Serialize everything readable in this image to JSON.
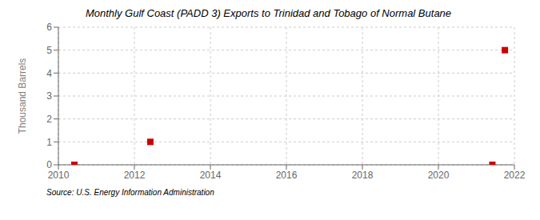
{
  "chart_data": {
    "type": "scatter",
    "title": "Monthly Gulf Coast (PADD 3) Exports to Trinidad and Tobago of Normal Butane",
    "y_label": "Thousand Barrels",
    "annotations": [
      "Source: U.S. Energy Information Administration"
    ],
    "x": [
      2010.42,
      2012.42,
      2021.42,
      2021.75
    ],
    "values": [
      0,
      1,
      0,
      5
    ],
    "color": "#cc0000",
    "marker": "square",
    "xlim": [
      2010,
      2022
    ],
    "ylim": [
      0,
      6
    ],
    "xticks": [
      2010,
      2012,
      2014,
      2016,
      2018,
      2020,
      2022
    ],
    "yticks": [
      0,
      1,
      2,
      3,
      4,
      5,
      6
    ],
    "grid": true
  }
}
